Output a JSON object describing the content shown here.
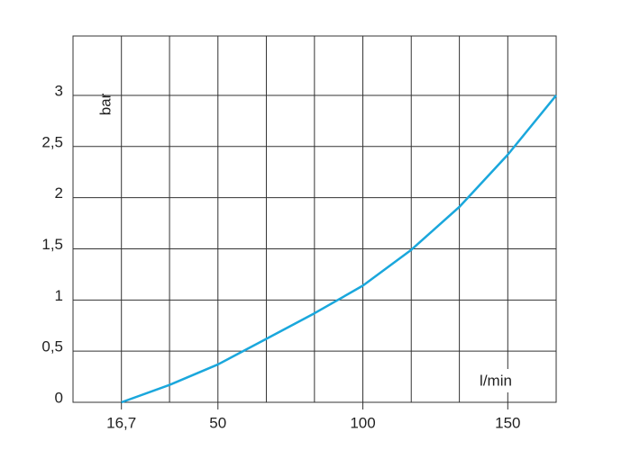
{
  "chart_data": {
    "type": "line",
    "x_label": "l/min",
    "y_label": "bar",
    "x": [
      16.7,
      33.3,
      50,
      66.7,
      83.3,
      100,
      116.7,
      133.3,
      150,
      166.7
    ],
    "series": [
      {
        "color": "#1aa7dc",
        "values": [
          0,
          0.17,
          0.37,
          0.62,
          0.87,
          1.14,
          1.49,
          1.91,
          2.42,
          3.0
        ]
      }
    ],
    "xlim": [
      0,
      166.7
    ],
    "ylim": [
      0,
      3.58
    ],
    "xticks": [
      {
        "value": 16.7,
        "label": "16,7"
      },
      50,
      100,
      150
    ],
    "xgrid": [
      0,
      16.7,
      33.3,
      50,
      66.7,
      83.3,
      100,
      116.7,
      133.3,
      150,
      166.7
    ],
    "yticks": [
      0,
      {
        "value": 0.5,
        "label": "0,5"
      },
      1,
      {
        "value": 1.5,
        "label": "1,5"
      },
      2,
      {
        "value": 2.5,
        "label": "2,5"
      },
      3
    ],
    "grid": true
  }
}
